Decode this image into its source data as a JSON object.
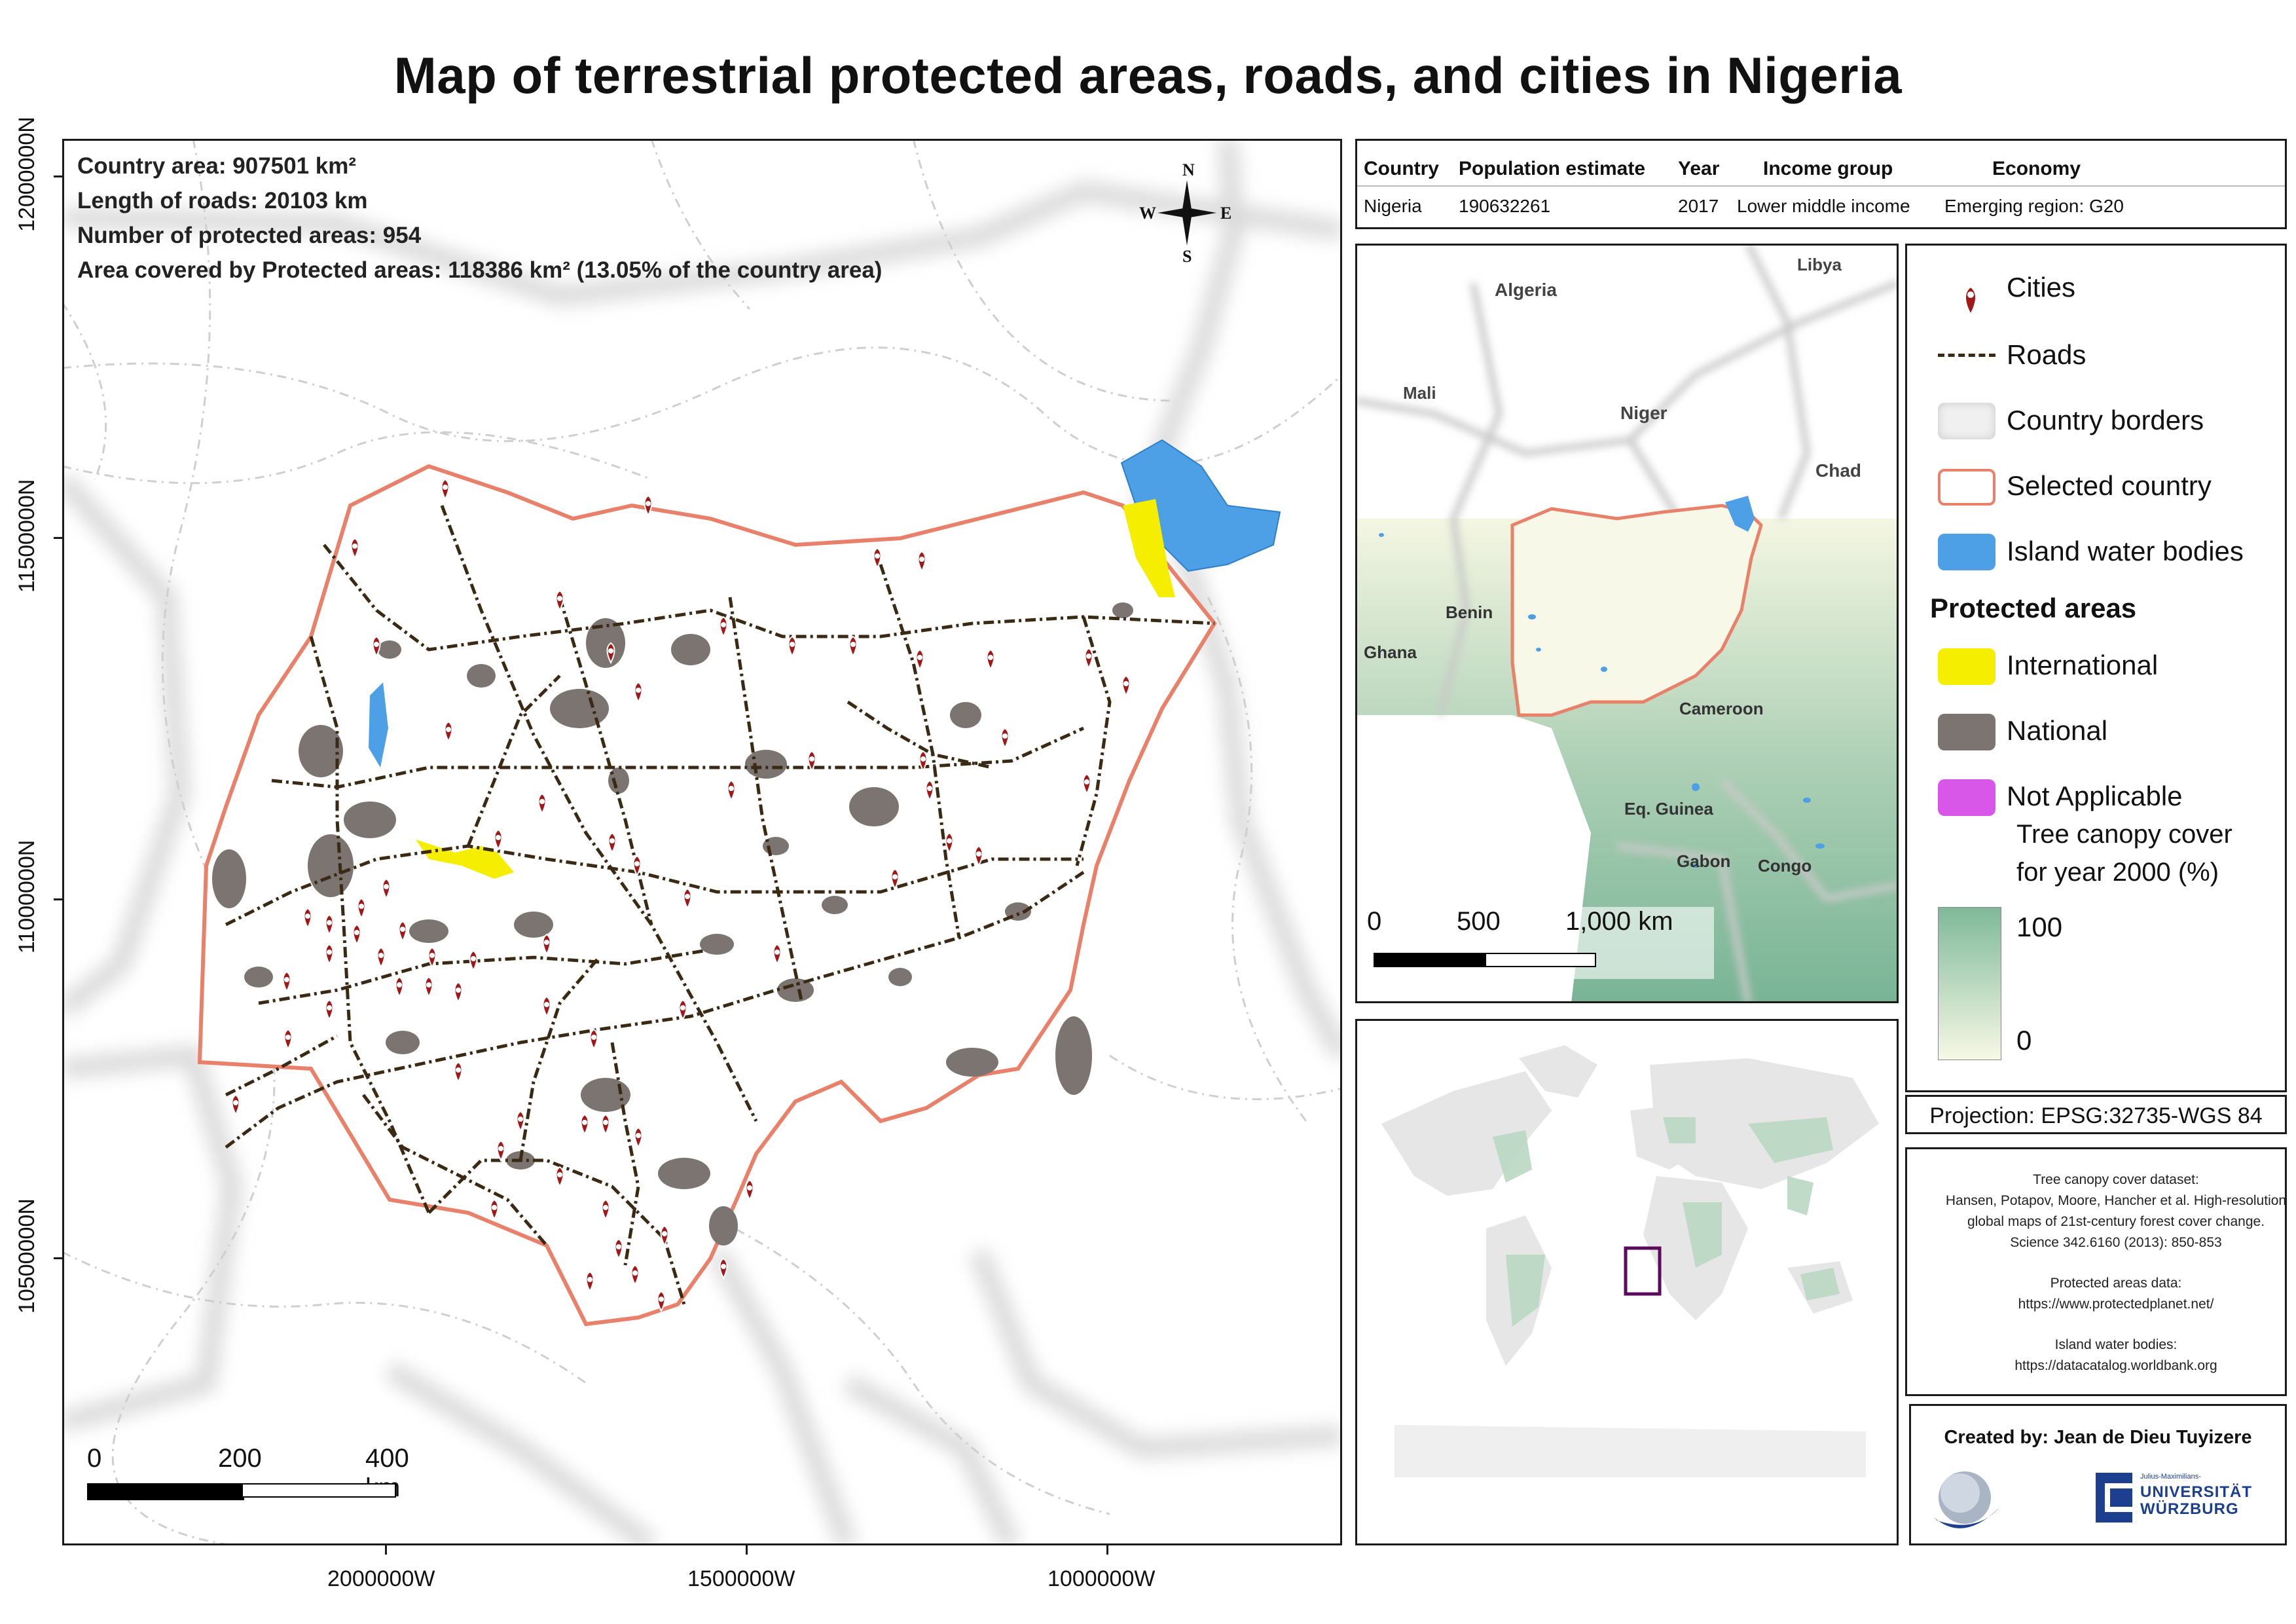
{
  "title": "Map of terrestrial protected areas, roads, and cities in Nigeria",
  "main_map": {
    "y_axis_labels": [
      "12000000N",
      "11500000N",
      "11000000N",
      "10500000N"
    ],
    "x_axis_labels": [
      "2000000W",
      "1500000W",
      "1000000W"
    ],
    "info": {
      "country_area": "Country area: 907501 km²",
      "roads": "Length of roads: 20103 km",
      "protected_count": "Number of protected areas: 954",
      "protected_area": "Area covered by Protected areas: 118386 km² (13.05% of the country area)"
    },
    "north_arrow": {
      "n": "N",
      "s": "S",
      "e": "E",
      "w": "W"
    },
    "scale_labels": [
      "0",
      "200",
      "400 km"
    ]
  },
  "country_table": {
    "headers": [
      "Country",
      "Population estimate",
      "Year",
      "Income group",
      "Economy"
    ],
    "row": [
      "Nigeria",
      "190632261",
      "2017",
      "Lower middle income",
      "Emerging region: G20"
    ]
  },
  "region_map": {
    "labels": [
      "Algeria",
      "Libya",
      "Mali",
      "Niger",
      "Chad",
      "Benin",
      "Ghana",
      "Cameroon",
      "Eq. Guinea",
      "Gabon",
      "Congo"
    ],
    "scale_labels": [
      "0",
      "500",
      "1,000 km"
    ]
  },
  "legend": {
    "cities": "Cities",
    "roads": "Roads",
    "country_borders": "Country borders",
    "selected_country": "Selected country",
    "island_water": "Island water bodies",
    "protected_title": "Protected areas",
    "international": "International",
    "national": "National",
    "not_applicable": "Not Applicable",
    "canopy_title_1": "Tree canopy cover",
    "canopy_title_2": "for year 2000 (%)",
    "canopy_max": "100",
    "canopy_min": "0",
    "colors": {
      "international": "#f5ee00",
      "national": "#7b7470",
      "not_applicable": "#d957e8",
      "water": "#4d9fe6",
      "selected_border": "#e8806a",
      "road": "#3a2a14",
      "city": "#a01818",
      "canopy_high": "#7fb999",
      "canopy_low": "#f7f8e6"
    }
  },
  "projection": "Projection: EPSG:32735-WGS 84",
  "sources": {
    "canopy": [
      "Tree canopy cover dataset:",
      "Hansen, Potapov, Moore, Hancher et al. High-resolution",
      "global maps of 21st-century forest cover change.",
      "Science 342.6160 (2013): 850-853"
    ],
    "protected": [
      "Protected areas data:",
      "https://www.protectedplanet.net/"
    ],
    "water": [
      "Island water bodies:",
      "https://datacatalog.worldbank.org"
    ]
  },
  "credits": {
    "created_by": "Created by: Jean de Dieu Tuyizere",
    "uni_small": "Julius-Maximilians-",
    "uni_line1": "UNIVERSITÄT",
    "uni_line2": "WÜRZBURG"
  }
}
